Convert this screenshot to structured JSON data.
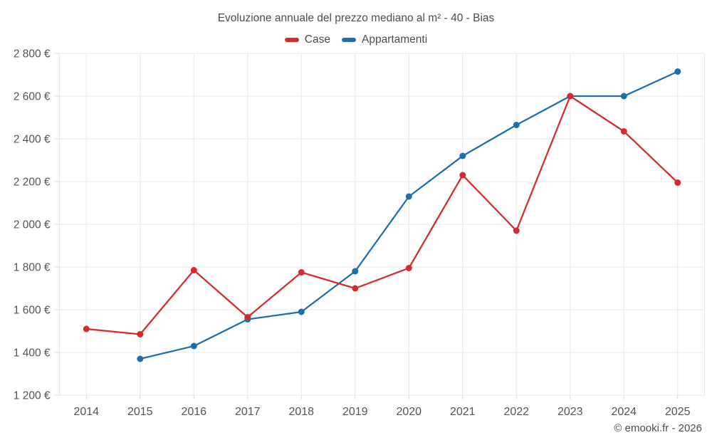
{
  "title": "Evoluzione annuale del prezzo mediano al m² - 40 - Bias",
  "footer": {
    "copyright": "© emooki.fr - 2026"
  },
  "chart_data": {
    "type": "line",
    "title": "Evoluzione annuale del prezzo mediano al m² - 40 - Bias",
    "categories": [
      "2014",
      "2015",
      "2016",
      "2017",
      "2018",
      "2019",
      "2020",
      "2021",
      "2022",
      "2023",
      "2024",
      "2025"
    ],
    "series": [
      {
        "name": "Case",
        "color": "#d62b2d",
        "values": [
          1510,
          1485,
          1785,
          1565,
          1775,
          1700,
          1795,
          2230,
          1970,
          2600,
          2435,
          2195
        ]
      },
      {
        "name": "Appartamenti",
        "color": "#1b6fad",
        "values": [
          null,
          1370,
          1430,
          1555,
          1590,
          1780,
          2130,
          2320,
          2465,
          2600,
          2600,
          2715
        ]
      }
    ],
    "xlabel": "",
    "ylabel": "",
    "ylim": [
      1200,
      2800
    ],
    "ytick_step": 200,
    "ytick_suffix": " €",
    "grid": true,
    "grid_color": "#e8e8e8",
    "tick_color": "#d9d9d9",
    "text_color": "#555555",
    "legend_position": "top"
  }
}
